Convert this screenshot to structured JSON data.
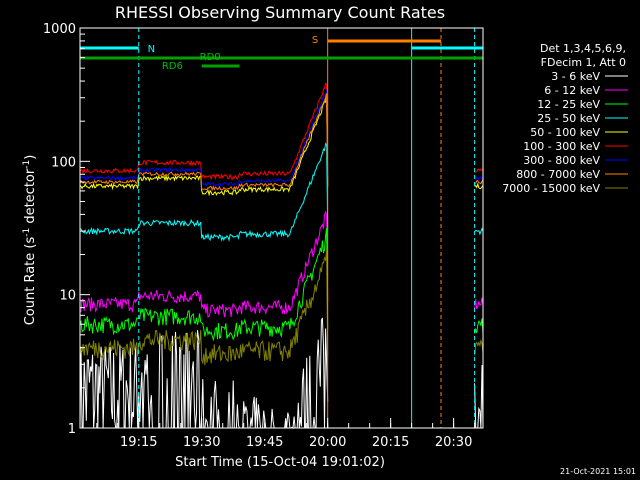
{
  "chart_data": {
    "type": "line",
    "title": "RHESSI Observing Summary Count Rates",
    "xlabel": "Start Time (15-Oct-04 19:01:02)",
    "ylabel_main": "Count Rate (s",
    "ylabel_sup1": "-1",
    "ylabel_mid": " detector",
    "ylabel_sup2": "-1",
    "ylabel_end": ")",
    "y_log": true,
    "ylim": [
      1,
      1000
    ],
    "xlim_minutes": [
      0,
      96
    ],
    "x_ticks": [
      {
        "min": 14,
        "label": "19:15"
      },
      {
        "min": 29,
        "label": "19:30"
      },
      {
        "min": 44,
        "label": "19:45"
      },
      {
        "min": 59,
        "label": "20:00"
      },
      {
        "min": 74,
        "label": "20:15"
      },
      {
        "min": 89,
        "label": "20:30"
      }
    ],
    "y_ticks": [
      {
        "v": 1,
        "label": "1"
      },
      {
        "v": 10,
        "label": "10"
      },
      {
        "v": 100,
        "label": "100"
      },
      {
        "v": 1000,
        "label": "1000"
      }
    ],
    "legend_header": [
      "Det 1,3,4,5,6,9,",
      "FDecim 1, Att 0"
    ],
    "series": [
      {
        "name": "3 - 6 keV",
        "color": "#ffffff",
        "base": 2.2,
        "noise": 0.5,
        "low": true
      },
      {
        "name": "6 - 12 keV",
        "color": "#ff00ff",
        "base": 8.5,
        "noise": 0.12
      },
      {
        "name": "12 - 25 keV",
        "color": "#00ff00",
        "base": 6.0,
        "noise": 0.15
      },
      {
        "name": "25 - 50 keV",
        "color": "#00ffff",
        "base": 30,
        "noise": 0.05
      },
      {
        "name": "50 - 100 keV",
        "color": "#ffff00",
        "base": 65,
        "noise": 0.04
      },
      {
        "name": "100 - 300 keV",
        "color": "#ff0000",
        "base": 85,
        "noise": 0.04
      },
      {
        "name": "300 - 800 keV",
        "color": "#0000ff",
        "base": 75,
        "noise": 0.03
      },
      {
        "name": "800 - 7000 keV",
        "color": "#ff8000",
        "base": 70,
        "noise": 0.03
      },
      {
        "name": "7000 - 15000 keV",
        "color": "#808000",
        "base": 4.0,
        "noise": 0.18
      }
    ],
    "annotations": {
      "flags": [
        {
          "label": "N",
          "color": "#00ffff"
        },
        {
          "label": "S",
          "color": "#ff8000"
        },
        {
          "label": "RD0",
          "color": "#00c000"
        },
        {
          "label": "RD6",
          "color": "#00c000"
        }
      ]
    },
    "data_gaps_minutes": [
      [
        59,
        94
      ]
    ],
    "segments_minutes": [
      0,
      14,
      29,
      38,
      59,
      79,
      86,
      94
    ]
  },
  "footer": {
    "timestamp": "21-Oct-2021 15:01"
  }
}
